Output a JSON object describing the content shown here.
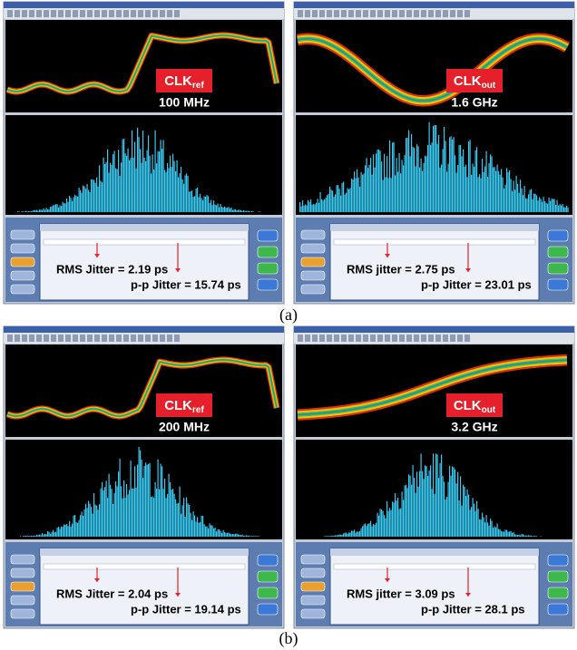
{
  "panels": [
    {
      "clock_label": "CLK",
      "clock_sub": "ref",
      "frequency": "100 MHz",
      "rms_jitter": "RMS Jitter = 2.19 ps",
      "pp_jitter": "p-p Jitter = 15.74 ps"
    },
    {
      "clock_label": "CLK",
      "clock_sub": "out",
      "frequency": "1.6 GHz",
      "rms_jitter": "RMS jitter = 2.75 ps",
      "pp_jitter": "p-p Jitter = 23.01 ps"
    },
    {
      "clock_label": "CLK",
      "clock_sub": "ref",
      "frequency": "200 MHz",
      "rms_jitter": "RMS Jitter = 2.04 ps",
      "pp_jitter": "p-p Jitter = 19.14 ps"
    },
    {
      "clock_label": "CLK",
      "clock_sub": "out",
      "frequency": "3.2 GHz",
      "rms_jitter": "RMS jitter = 3.09 ps",
      "pp_jitter": "p-p Jitter = 28.1 ps"
    }
  ],
  "captions": [
    "(a)",
    "(b)"
  ]
}
